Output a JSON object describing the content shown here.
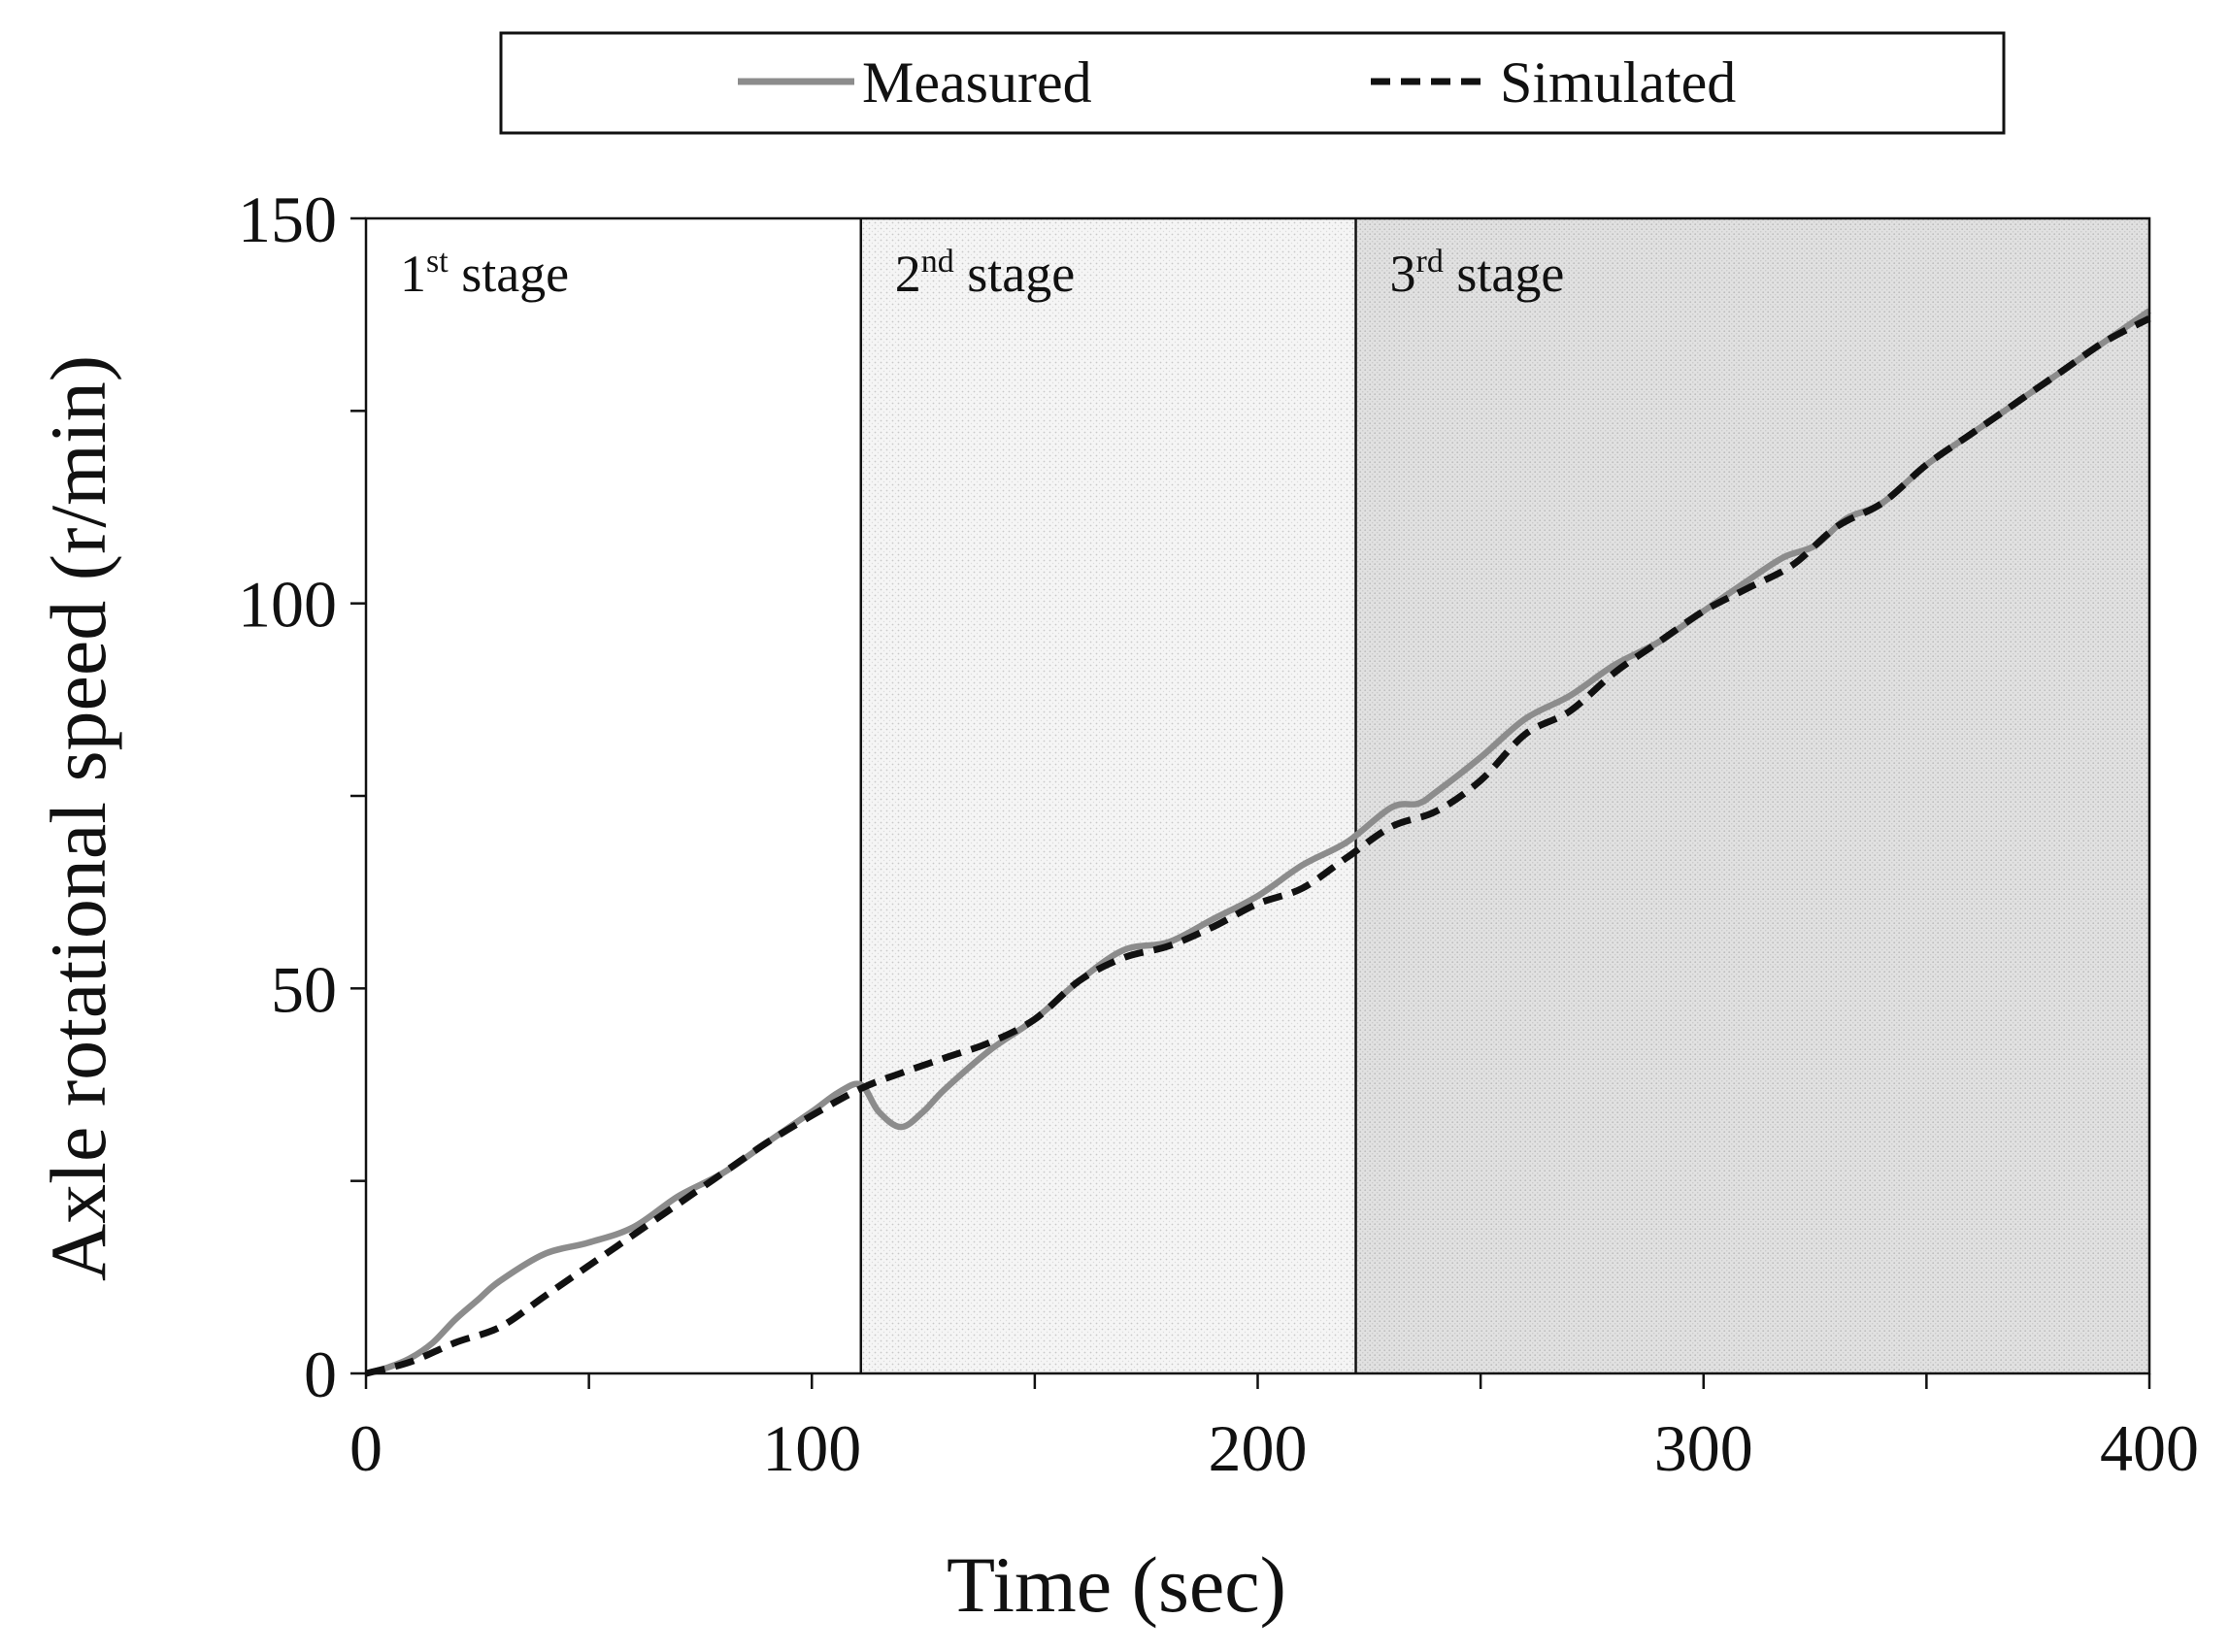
{
  "chart_data": {
    "type": "line",
    "title": "",
    "xlabel": "Time (sec)",
    "ylabel": "Axle rotational speed (r/min)",
    "xlim": [
      0,
      400
    ],
    "ylim": [
      0,
      150
    ],
    "x_ticks": [
      0,
      100,
      200,
      300,
      400
    ],
    "y_ticks": [
      0,
      50,
      100,
      150
    ],
    "x_tick_labels": [
      "0",
      "100",
      "200",
      "300",
      "400"
    ],
    "y_tick_labels": [
      "0",
      "50",
      "100",
      "150"
    ],
    "grid": false,
    "legend_position": "top",
    "legend": [
      "Measured",
      "Simulated"
    ],
    "stages": [
      {
        "ordinal": "1",
        "suffix": "st",
        "word": "stage",
        "start": 0,
        "end": 111
      },
      {
        "ordinal": "2",
        "suffix": "nd",
        "word": "stage",
        "start": 111,
        "end": 222
      },
      {
        "ordinal": "3",
        "suffix": "rd",
        "word": "stage",
        "start": 222,
        "end": 400
      }
    ],
    "series": [
      {
        "name": "Measured",
        "color": "#8c8c8c",
        "style": "solid",
        "x": [
          0,
          5,
          10,
          15,
          20,
          25,
          30,
          40,
          50,
          60,
          70,
          80,
          90,
          100,
          106,
          111,
          115,
          120,
          125,
          130,
          140,
          150,
          160,
          170,
          180,
          190,
          200,
          210,
          220,
          230,
          236,
          240,
          250,
          260,
          270,
          280,
          290,
          300,
          310,
          318,
          325,
          332,
          340,
          350,
          360,
          370,
          380,
          390,
          400
        ],
        "values": [
          0,
          0.8,
          2,
          4,
          7,
          9.5,
          12,
          15.5,
          17,
          19,
          23,
          26,
          30,
          34,
          36.5,
          37.5,
          34,
          32,
          34,
          37,
          42,
          46,
          51,
          55,
          56,
          59,
          62,
          66,
          69,
          73.5,
          74,
          75.5,
          80,
          85,
          88,
          92,
          95,
          99,
          103,
          106,
          107.5,
          111,
          113,
          118,
          122,
          126,
          130,
          134,
          138
        ]
      },
      {
        "name": "Simulated",
        "color": "#111111",
        "style": "dashed",
        "x": [
          0,
          10,
          20,
          30,
          40,
          50,
          60,
          70,
          80,
          90,
          100,
          111,
          120,
          130,
          140,
          150,
          160,
          170,
          180,
          190,
          200,
          210,
          220,
          230,
          240,
          250,
          260,
          270,
          280,
          290,
          300,
          310,
          320,
          330,
          340,
          350,
          360,
          370,
          380,
          390,
          400
        ],
        "values": [
          0,
          1.5,
          4,
          6,
          10,
          14,
          18,
          22,
          26,
          30,
          33.5,
          37,
          39,
          41,
          43,
          46,
          51,
          54,
          55.5,
          58,
          61,
          63,
          67,
          71,
          73,
          77,
          83,
          86,
          91,
          95,
          99,
          102,
          105,
          110,
          113,
          118,
          122,
          126,
          130,
          134,
          137
        ]
      }
    ]
  }
}
